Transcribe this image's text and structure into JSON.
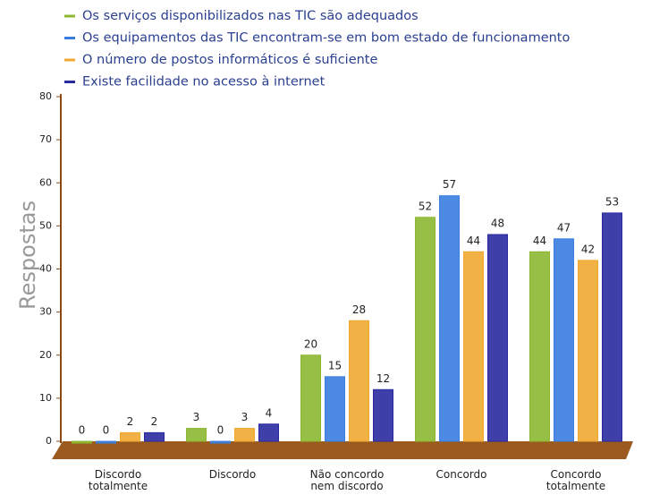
{
  "chart_data": {
    "type": "bar",
    "y_label": "Respostas",
    "categories": [
      "Discordo totalmente",
      "Discordo",
      "Não concordo nem discordo",
      "Concordo",
      "Concordo totalmente"
    ],
    "series": [
      {
        "name": "Os serviços disponibilizados nas TIC são adequados",
        "color": "#8cb832",
        "values": [
          0,
          3,
          20,
          52,
          44
        ]
      },
      {
        "name": "Os equipamentos das TIC encontram-se em bom estado de funcionamento",
        "color": "#3a7de0",
        "values": [
          0,
          0,
          15,
          57,
          47
        ]
      },
      {
        "name": "O número de postos informáticos é suficiente",
        "color": "#f0a830",
        "values": [
          2,
          3,
          28,
          44,
          42
        ]
      },
      {
        "name": "Existe facilidade no acesso à internet",
        "color": "#2a2aa0",
        "values": [
          2,
          4,
          12,
          48,
          53
        ]
      }
    ],
    "ylim": [
      0,
      80
    ],
    "yticks": [
      0,
      10,
      20,
      30,
      40,
      50,
      60,
      70,
      80
    ]
  }
}
